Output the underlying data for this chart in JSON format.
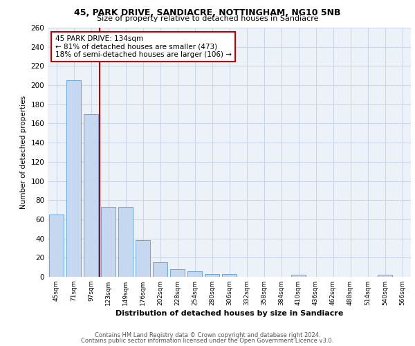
{
  "title1": "45, PARK DRIVE, SANDIACRE, NOTTINGHAM, NG10 5NB",
  "title2": "Size of property relative to detached houses in Sandiacre",
  "xlabel": "Distribution of detached houses by size in Sandiacre",
  "ylabel": "Number of detached properties",
  "categories": [
    "45sqm",
    "71sqm",
    "97sqm",
    "123sqm",
    "149sqm",
    "176sqm",
    "202sqm",
    "228sqm",
    "254sqm",
    "280sqm",
    "306sqm",
    "332sqm",
    "358sqm",
    "384sqm",
    "410sqm",
    "436sqm",
    "462sqm",
    "488sqm",
    "514sqm",
    "540sqm",
    "566sqm"
  ],
  "values": [
    65,
    205,
    170,
    73,
    73,
    38,
    15,
    8,
    6,
    3,
    3,
    0,
    0,
    0,
    2,
    0,
    0,
    0,
    0,
    2,
    0
  ],
  "bar_color": "#c5d8f0",
  "bar_edge_color": "#5b9bd5",
  "grid_color": "#c8d4e8",
  "background_color": "#edf2f9",
  "vline_x_index": 3,
  "vline_color": "#c00000",
  "annotation_text": "45 PARK DRIVE: 134sqm\n← 81% of detached houses are smaller (473)\n18% of semi-detached houses are larger (106) →",
  "annotation_box_color": "#c00000",
  "footer1": "Contains HM Land Registry data © Crown copyright and database right 2024.",
  "footer2": "Contains public sector information licensed under the Open Government Licence v3.0.",
  "ylim": [
    0,
    260
  ],
  "yticks": [
    0,
    20,
    40,
    60,
    80,
    100,
    120,
    140,
    160,
    180,
    200,
    220,
    240,
    260
  ]
}
